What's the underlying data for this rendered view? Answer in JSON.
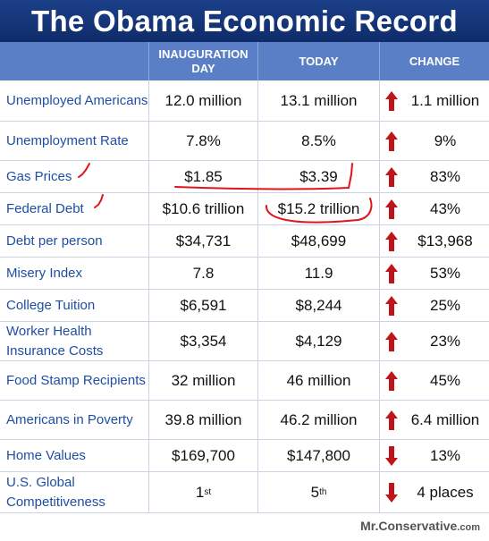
{
  "title": "The Obama Economic Record",
  "header": {
    "col1": "INAUGURATION DAY",
    "col2": "TODAY",
    "col3": "CHANGE"
  },
  "rows": [
    {
      "label": "Unemployed Americans",
      "inauguration": "12.0 million",
      "today": "13.1 million",
      "change": "1.1 million",
      "direction": "up"
    },
    {
      "label": "Unemployment Rate",
      "inauguration": "7.8%",
      "today": "8.5%",
      "change": "9%",
      "direction": "up"
    },
    {
      "label": "Gas Prices",
      "inauguration": "$1.85",
      "today": "$3.39",
      "change": "83%",
      "direction": "up"
    },
    {
      "label": "Federal Debt",
      "inauguration": "$10.6 trillion",
      "today": "$15.2 trillion",
      "change": "43%",
      "direction": "up"
    },
    {
      "label": "Debt per person",
      "inauguration": "$34,731",
      "today": "$48,699",
      "change": "$13,968",
      "direction": "up"
    },
    {
      "label": "Misery Index",
      "inauguration": "7.8",
      "today": "11.9",
      "change": "53%",
      "direction": "up"
    },
    {
      "label": "College Tuition",
      "inauguration": "$6,591",
      "today": "$8,244",
      "change": "25%",
      "direction": "up"
    },
    {
      "label": "Worker Health Insurance Costs",
      "inauguration": "$3,354",
      "today": "$4,129",
      "change": "23%",
      "direction": "up"
    },
    {
      "label": "Food Stamp Recipients",
      "inauguration": "32 million",
      "today": "46 million",
      "change": "45%",
      "direction": "up"
    },
    {
      "label": "Americans in Poverty",
      "inauguration": "39.8 million",
      "today": "46.2 million",
      "change": "6.4 million",
      "direction": "up"
    },
    {
      "label": "Home Values",
      "inauguration": "$169,700",
      "today": "$147,800",
      "change": "13%",
      "direction": "down"
    },
    {
      "label": "U.S. Global Competitiveness",
      "inauguration": "1",
      "inauguration_sup": "st",
      "today": "5",
      "today_sup": "th",
      "change": "4 places",
      "direction": "down"
    }
  ],
  "footer": {
    "brand": "Mr.Conservative",
    "tld": ".com"
  },
  "colors": {
    "title_bg": "#1b3f88",
    "header_bg": "#5b7fc6",
    "label_text": "#1f4ea3",
    "arrow": "#c0141b",
    "annotation": "#e0141b"
  },
  "icons": {
    "up": "red-up-arrow-icon",
    "down": "red-down-arrow-icon"
  }
}
